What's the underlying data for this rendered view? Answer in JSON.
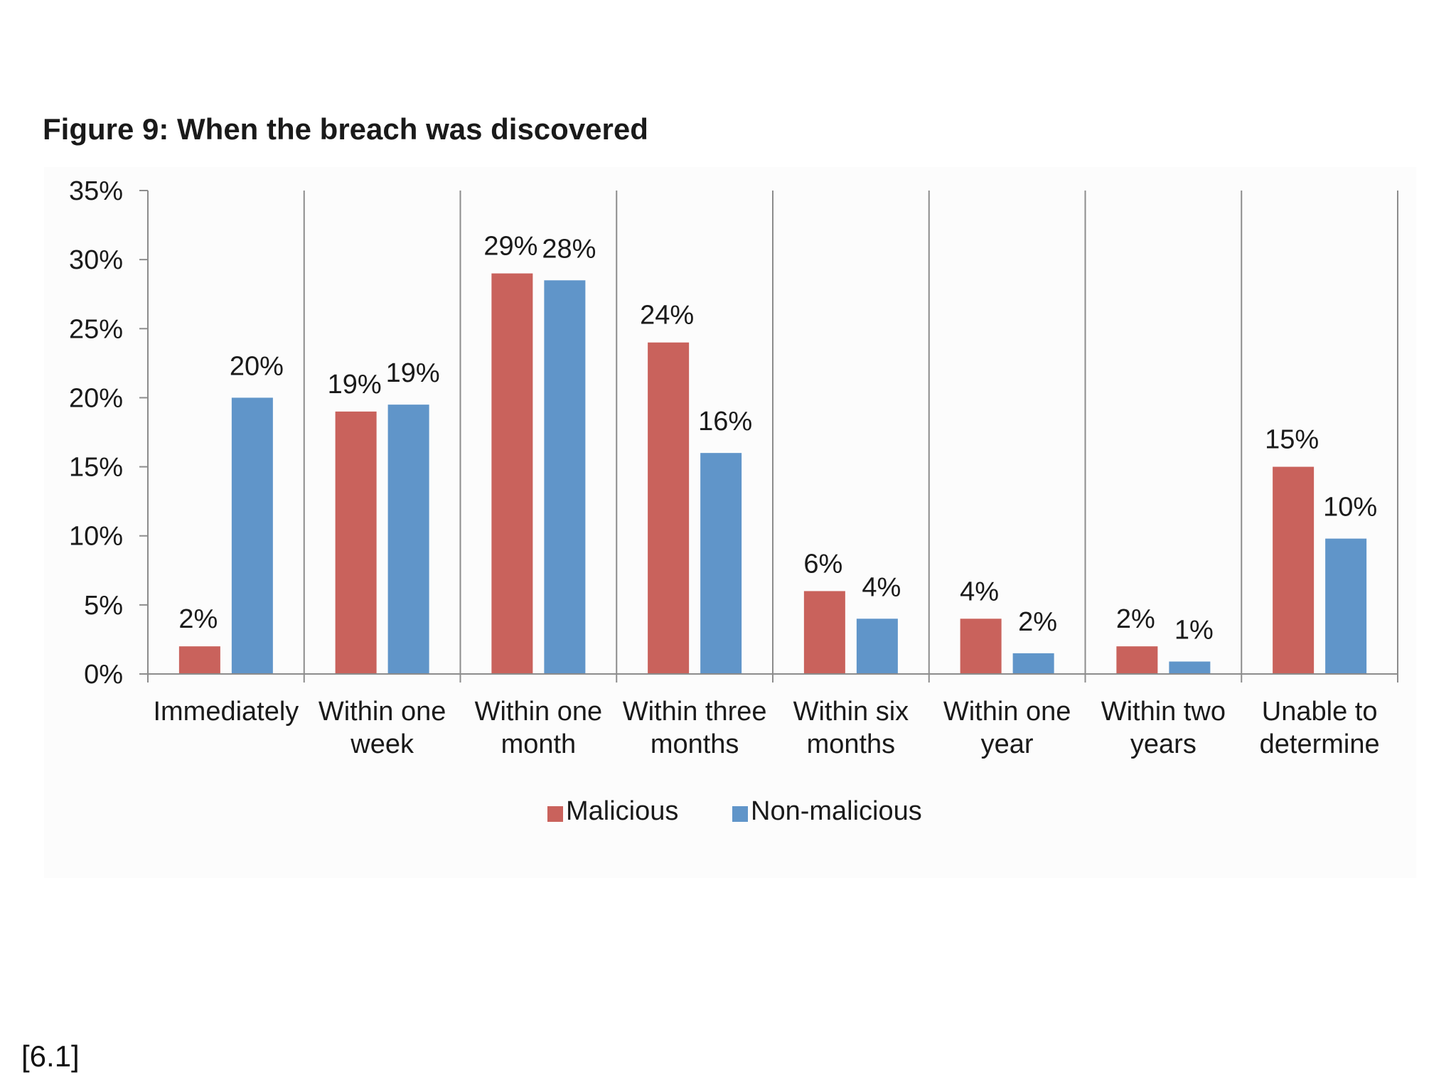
{
  "figure": {
    "title": "Figure 9: When the breach was discovered",
    "footnote": "[6.1]"
  },
  "chart_data": {
    "type": "bar",
    "title": "Figure 9: When the breach was discovered",
    "xlabel": "",
    "ylabel": "",
    "ylim": [
      0,
      35
    ],
    "y_ticks": [
      "0%",
      "5%",
      "10%",
      "15%",
      "20%",
      "25%",
      "30%",
      "35%"
    ],
    "y_tick_values": [
      0,
      5,
      10,
      15,
      20,
      25,
      30,
      35
    ],
    "categories": [
      [
        "Immediately"
      ],
      [
        "Within one",
        "week"
      ],
      [
        "Within one",
        "month"
      ],
      [
        "Within three",
        "months"
      ],
      [
        "Within six",
        "months"
      ],
      [
        "Within one",
        "year"
      ],
      [
        "Within two",
        "years"
      ],
      [
        "Unable to",
        "determine"
      ]
    ],
    "series": [
      {
        "name": "Malicious",
        "color": "#c9625c",
        "values": [
          2,
          19,
          29,
          24,
          6,
          4,
          2,
          15
        ],
        "labels": [
          "2%",
          "19%",
          "29%",
          "24%",
          "6%",
          "4%",
          "2%",
          "15%"
        ]
      },
      {
        "name": "Non-malicious",
        "color": "#6095c9",
        "values": [
          20,
          19.5,
          28.5,
          16,
          4,
          1.5,
          0.9,
          9.8
        ],
        "labels": [
          "20%",
          "19%",
          "28%",
          "16%",
          "4%",
          "2%",
          "1%",
          "10%"
        ]
      }
    ],
    "grid": "vertical separators between categories",
    "legend_position": "bottom-center"
  }
}
